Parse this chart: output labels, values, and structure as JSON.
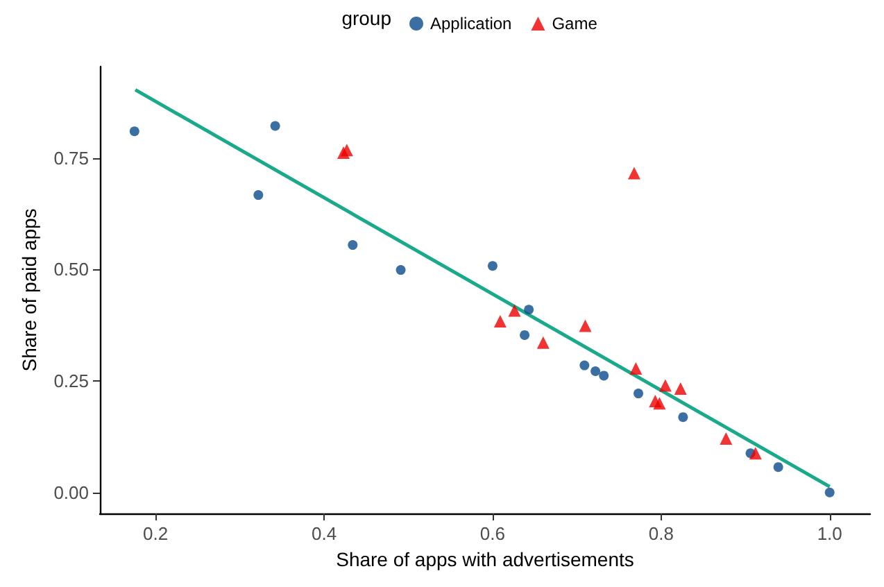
{
  "chart_data": {
    "type": "scatter",
    "xlabel": "Share of apps with advertisements",
    "ylabel": "Share of paid apps",
    "legend_title": "group",
    "legend": "top",
    "grid": false,
    "xlim": [
      0.134,
      1.048
    ],
    "ylim": [
      -0.047,
      0.955
    ],
    "xticks": [
      0.2,
      0.4,
      0.6,
      0.8,
      {
        "value": 1,
        "label": "1.0"
      }
    ],
    "yticks": [
      {
        "value": 0,
        "label": "0.00"
      },
      {
        "value": 0.25,
        "label": "0.25"
      },
      {
        "value": 0.5,
        "label": "0.50"
      },
      {
        "value": 0.75,
        "label": "0.75"
      }
    ],
    "series": [
      {
        "name": "Application",
        "color": "#0a4a8c",
        "marker": "circle",
        "x": [
          0.175,
          0.342,
          0.322,
          0.434,
          0.491,
          0.6,
          0.643,
          0.638,
          0.709,
          0.722,
          0.732,
          0.773,
          0.826,
          0.906,
          0.939,
          1.0
        ],
        "values": [
          0.81,
          0.822,
          0.667,
          0.555,
          0.499,
          0.508,
          0.41,
          0.353,
          0.285,
          0.272,
          0.262,
          0.222,
          0.169,
          0.088,
          0.057,
          0.0
        ]
      },
      {
        "name": "Game",
        "color": "#ee0000",
        "marker": "triangle",
        "x": [
          0.423,
          0.427,
          0.609,
          0.768,
          0.626,
          0.71,
          0.66,
          0.77,
          0.805,
          0.823,
          0.793,
          0.798,
          0.877,
          0.912
        ],
        "values": [
          0.762,
          0.768,
          0.384,
          0.716,
          0.408,
          0.374,
          0.336,
          0.278,
          0.24,
          0.233,
          0.205,
          0.2,
          0.121,
          0.088
        ]
      },
      {
        "type": "line",
        "color": "#1aa98a",
        "marker": "none",
        "line_style": "solid",
        "x": [
          0.176,
          1.0
        ],
        "values": [
          0.903,
          0.013
        ]
      }
    ]
  }
}
